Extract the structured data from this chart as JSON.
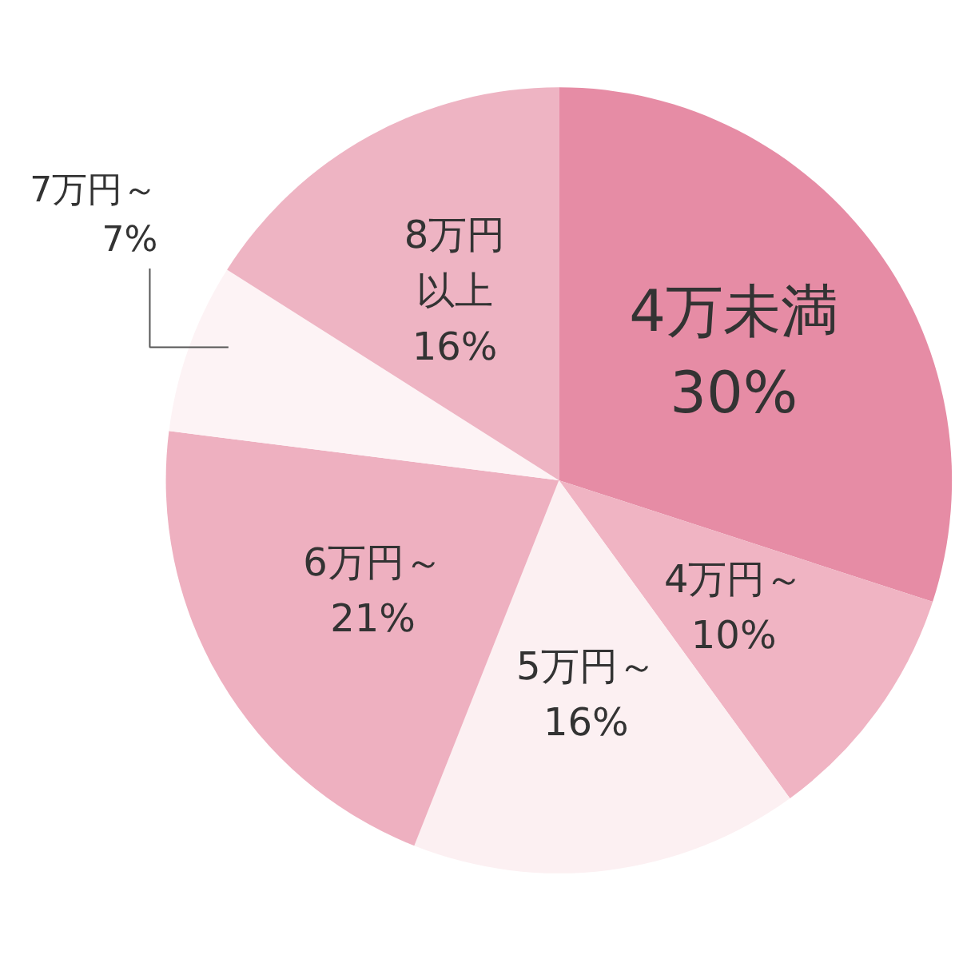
{
  "chart_data": {
    "type": "pie",
    "categories": [
      "4万未満",
      "4万円～",
      "5万円～",
      "6万円～",
      "7万円～",
      "8万円以上"
    ],
    "values": [
      30,
      10,
      16,
      21,
      7,
      16
    ],
    "colors": [
      "#e68ca5",
      "#f0b4c3",
      "#fcf0f2",
      "#eeb0c0",
      "#fdf3f5",
      "#eeb4c3"
    ],
    "value_labels": [
      "30%",
      "10%",
      "16%",
      "21%",
      "7%",
      "16%"
    ]
  }
}
